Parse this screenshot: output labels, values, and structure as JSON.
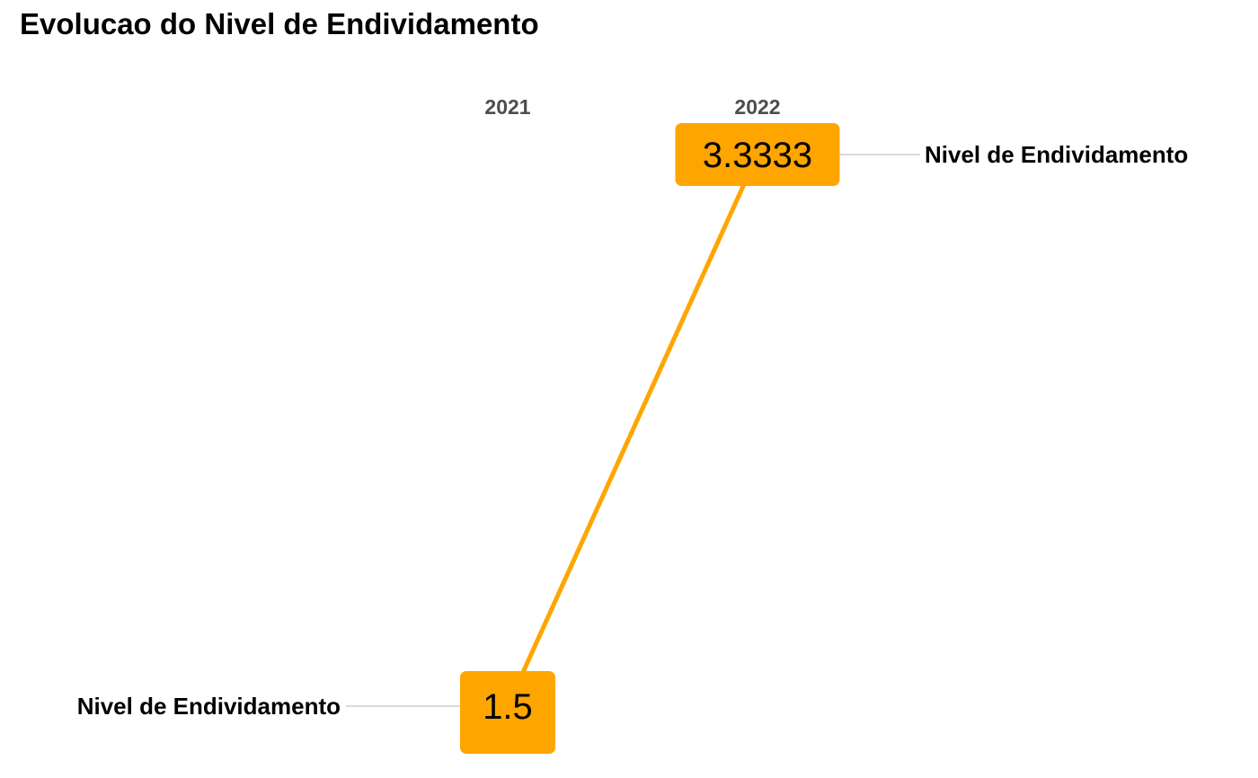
{
  "chart_data": {
    "type": "line",
    "title": "Evolucao do Nivel de Endividamento",
    "x": [
      "2021",
      "2022"
    ],
    "series": [
      {
        "name": "Nivel de Endividamento",
        "values": [
          1.5,
          3.3333
        ],
        "value_labels": [
          "1.5",
          "3.3333"
        ]
      }
    ],
    "legend": "left of first point and right of last point",
    "grid": false,
    "colors": {
      "line": "#FFA500",
      "label_box": "#FFA500",
      "connector": "#d9d9d9",
      "year_text": "#4d4d4d"
    }
  }
}
